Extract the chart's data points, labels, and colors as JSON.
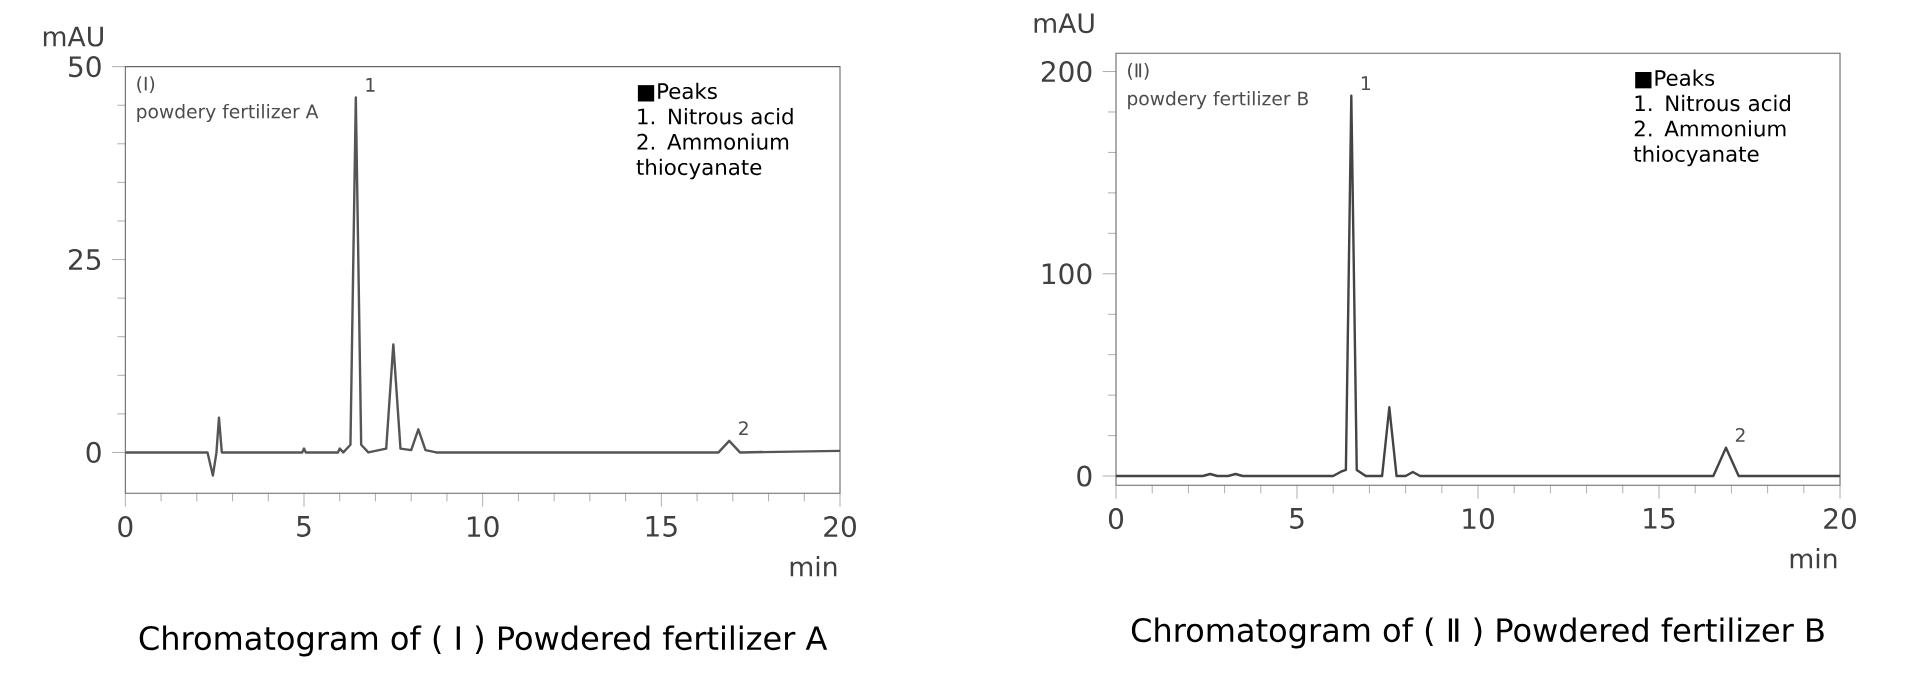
{
  "chart_data": [
    {
      "type": "line",
      "title": "Chromatogram of ( Ⅰ ) Powdered fertilizer A",
      "xlabel": "min",
      "ylabel": "mAU",
      "xlim": [
        0,
        20
      ],
      "ylim": [
        -5.3,
        50
      ],
      "xticks": [
        0,
        5,
        10,
        15,
        20
      ],
      "yticks": [
        0,
        25,
        50
      ],
      "color": "#555555",
      "x": [
        0,
        2.3,
        2.45,
        2.55,
        2.62,
        2.7,
        2.9,
        4.95,
        5.0,
        5.05,
        5.95,
        6.0,
        6.1,
        6.3,
        6.45,
        6.6,
        6.8,
        7.3,
        7.5,
        7.7,
        8.0,
        8.2,
        8.4,
        8.7,
        16.6,
        16.9,
        17.2,
        20
      ],
      "values": [
        0,
        0,
        -3,
        0,
        4.5,
        0,
        0,
        0,
        0.5,
        0,
        0,
        0.5,
        0,
        1,
        46,
        1,
        0,
        0.5,
        14,
        0.5,
        0.3,
        3,
        0.3,
        0,
        0,
        1.5,
        0,
        0.2
      ],
      "annotations": [
        "(Ⅰ)",
        "powdery fertilizer A",
        "■Peaks",
        "1. Nitrous acid",
        "2. Ammonium thiocyanate",
        {
          "text": "1",
          "x": 6.45,
          "y": 46
        },
        {
          "text": "2",
          "x": 16.9,
          "y": 1.5
        }
      ]
    },
    {
      "type": "line",
      "title": "Chromatogram of ( Ⅱ ) Powdered fertilizer B",
      "xlabel": "min",
      "ylabel": "mAU",
      "xlim": [
        0,
        20
      ],
      "ylim": [
        -4.6,
        209
      ],
      "xticks": [
        0,
        5,
        10,
        15,
        20
      ],
      "yticks": [
        0,
        100,
        200
      ],
      "color": "#444444",
      "x": [
        0,
        2.4,
        2.6,
        2.8,
        3.1,
        3.3,
        3.5,
        6.0,
        6.2,
        6.35,
        6.5,
        6.65,
        6.9,
        7.35,
        7.55,
        7.75,
        8.0,
        8.2,
        8.4,
        16.5,
        16.85,
        17.2,
        20
      ],
      "values": [
        0,
        0,
        1,
        0,
        0,
        1,
        0,
        0,
        2,
        3,
        188,
        3,
        0,
        0,
        34,
        0,
        0,
        2,
        0,
        0,
        14,
        0,
        0
      ],
      "annotations": [
        "(Ⅱ)",
        "powdery fertilizer B",
        "■Peaks",
        "1. Nitrous acid",
        "2. Ammonium thiocyanate",
        {
          "text": "1",
          "x": 6.5,
          "y": 188
        },
        {
          "text": "2",
          "x": 16.85,
          "y": 14
        }
      ]
    }
  ]
}
